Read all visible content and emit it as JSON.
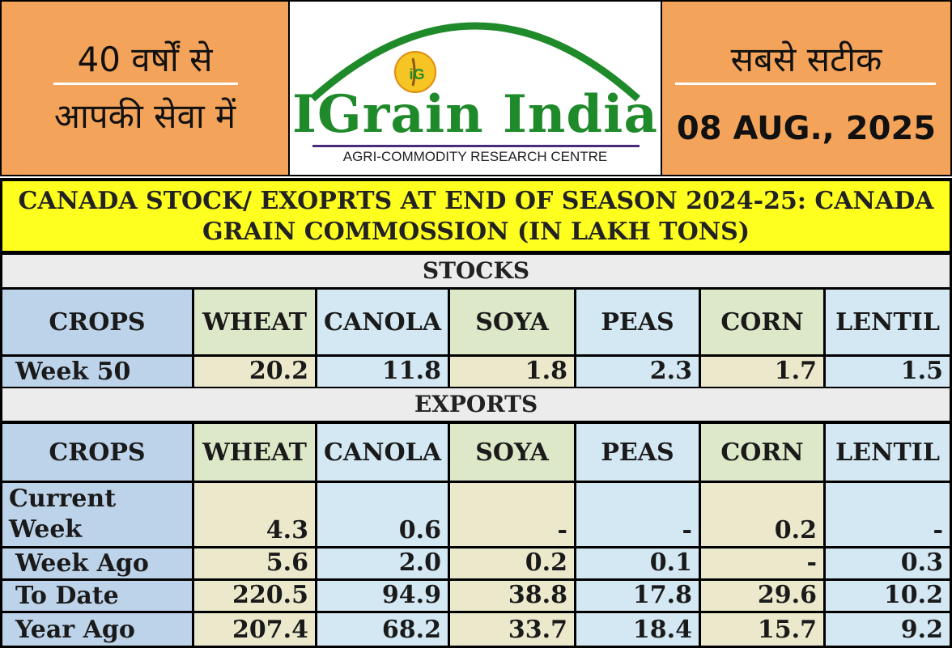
{
  "header": {
    "left_line1": "40 वर्षों से",
    "left_line2": "आपकी सेवा में",
    "right_line1": "सबसे सटीक",
    "date": "08 AUG., 2025",
    "logo_name": "IGrain India",
    "logo_subtitle": "AGRI-COMMODITY RESEARCH CENTRE",
    "logo_badge": "iG"
  },
  "table": {
    "title_line1": "CANADA STOCK/ EXOPRTS AT END OF SEASON 2024-25: CANADA",
    "title_line2": "GRAIN COMMOSSION (IN LAKH TONS)",
    "columns": [
      "CROPS",
      "WHEAT",
      "CANOLA",
      "SOYA",
      "PEAS",
      "CORN",
      "LENTIL"
    ],
    "stocks": {
      "title": "STOCKS",
      "rows": [
        {
          "label": "Week  50",
          "values": [
            "20.2",
            "11.8",
            "1.8",
            "2.3",
            "1.7",
            "1.5"
          ]
        }
      ]
    },
    "exports": {
      "title": "EXPORTS",
      "rows": [
        {
          "label": "Current Week",
          "values": [
            "4.3",
            "0.6",
            "-",
            "-",
            "0.2",
            "-"
          ]
        },
        {
          "label": "Week Ago",
          "values": [
            "5.6",
            "2.0",
            "0.2",
            "0.1",
            "-",
            "0.3"
          ]
        },
        {
          "label": "To Date",
          "values": [
            "220.5",
            "94.9",
            "38.8",
            "17.8",
            "29.6",
            "10.2"
          ]
        },
        {
          "label": "Year Ago",
          "values": [
            "207.4",
            "68.2",
            "33.7",
            "18.4",
            "15.7",
            "9.2"
          ]
        }
      ]
    }
  },
  "colors": {
    "header_orange": "#f4a45a",
    "title_yellow": "#ffff1f",
    "logo_green": "#1f8a2a",
    "label_blue": "#bdd3ea",
    "cell_cream": "#ece8cc",
    "cell_lightblue": "#d3e8f2"
  }
}
